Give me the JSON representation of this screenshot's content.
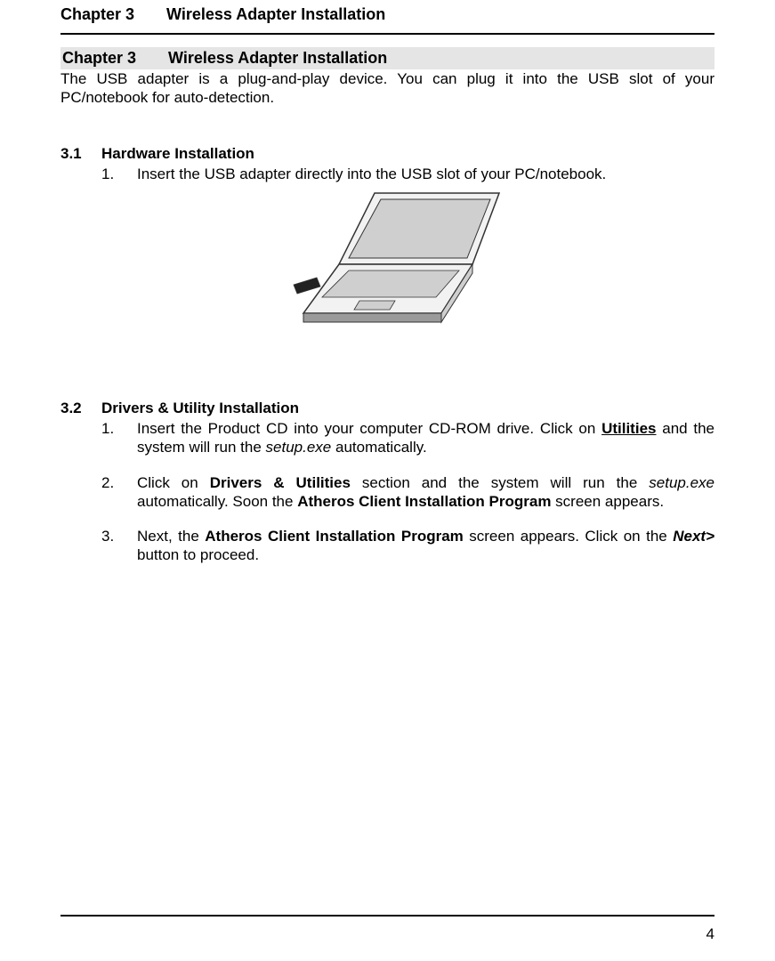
{
  "header": {
    "chapter_label": "Chapter 3",
    "chapter_title": "Wireless Adapter Installation"
  },
  "chapter_bar": {
    "chapter_label": "Chapter 3",
    "chapter_title": "Wireless Adapter Installation"
  },
  "intro": "The USB adapter is a plug-and-play device. You can plug it into the USB slot of your PC/notebook for auto-detection.",
  "section_31": {
    "number": "3.1",
    "title": "Hardware Installation",
    "step1_marker": "1.",
    "step1_text": "Insert the USB adapter directly into the USB slot of your PC/notebook.",
    "figure": {
      "stroke_color": "#333333",
      "fill_light": "#f2f2f2",
      "fill_mid": "#cfcfcf",
      "fill_dark": "#9a9a9a",
      "usb_fill": "#222222"
    }
  },
  "section_32": {
    "number": "3.2",
    "title": "Drivers & Utility Installation",
    "items": [
      {
        "marker": "1.",
        "pre": "Insert the Product CD into your computer CD-ROM drive. Click on ",
        "underline_bold": "Utilities",
        "mid": " and the system will run the ",
        "italic": "setup.exe",
        "post": " automatically."
      },
      {
        "marker": "2.",
        "pre": "Click on ",
        "bold1": "Drivers & Utilities",
        "mid1": " section and the system will run the ",
        "italic": "setup.exe",
        "mid2": " automatically. Soon the ",
        "bold2": "Atheros Client Installation Program",
        "post": " screen appears."
      },
      {
        "marker": "3.",
        "pre": "Next, the ",
        "bold1": "Atheros Client Installation Program",
        "mid1": " screen appears. Click on the ",
        "bold2": "Next>",
        "post": " button to proceed."
      }
    ]
  },
  "page_number": "4"
}
